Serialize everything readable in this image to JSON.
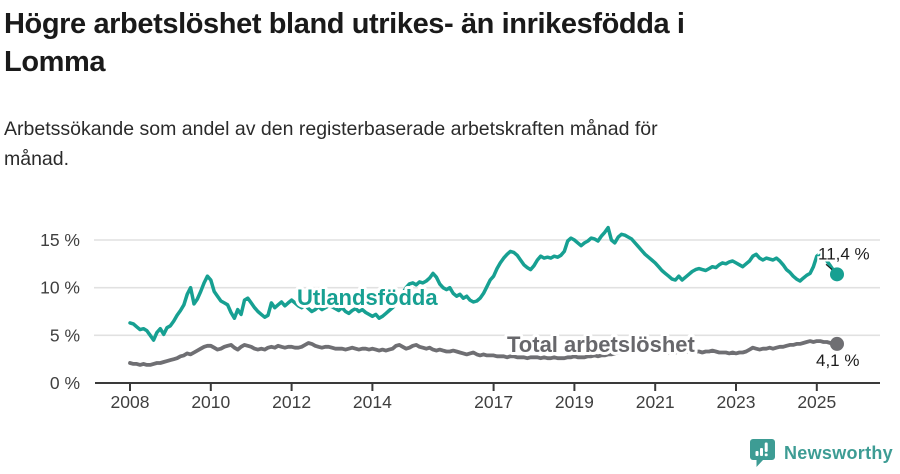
{
  "header": {
    "title": "Högre arbetslöshet bland utrikes- än inrikesfödda i\nLomma",
    "subtitle": "Arbetssökande som andel av den registerbaserade arbetskraften månad för\nmånad."
  },
  "chart_data": {
    "type": "line",
    "title": "Högre arbetslöshet bland utrikes- än inrikesfödda i Lomma",
    "subtitle": "Arbetssökande som andel av den registerbaserade arbetskraften månad för månad.",
    "unit": "%",
    "grid": "horizontal",
    "x": {
      "start_year": 2008,
      "points_per_year": 12,
      "tick_years": [
        2008,
        2010,
        2012,
        2014,
        2017,
        2019,
        2021,
        2023,
        2025
      ],
      "tick_labels": [
        "2008",
        "2010",
        "2012",
        "2014",
        "2017",
        "2019",
        "2021",
        "2023",
        "2025"
      ]
    },
    "y": {
      "tick_values": [
        0,
        5,
        10,
        15
      ],
      "tick_labels": [
        "0 %",
        "5 %",
        "10 %",
        "15 %"
      ],
      "range": [
        0,
        17
      ]
    },
    "series": [
      {
        "id": "utlandsfodda",
        "name": "Utlandsfödda",
        "color": "#17a092",
        "end_label": "11,4 %",
        "end_value": 11.4,
        "values": [
          6.3,
          6.2,
          5.9,
          5.6,
          5.7,
          5.5,
          5.0,
          4.5,
          5.3,
          5.7,
          5.1,
          5.8,
          6.0,
          6.5,
          7.1,
          7.6,
          8.2,
          9.3,
          10.0,
          8.3,
          8.8,
          9.6,
          10.5,
          11.2,
          10.8,
          9.6,
          9.1,
          8.6,
          8.4,
          8.2,
          7.4,
          6.8,
          7.7,
          7.2,
          8.7,
          8.9,
          8.4,
          7.9,
          7.5,
          7.2,
          6.9,
          7.1,
          8.4,
          7.9,
          8.2,
          8.5,
          8.1,
          8.4,
          8.7,
          8.4,
          8.1,
          7.9,
          8.2,
          7.8,
          7.5,
          7.7,
          8.0,
          7.7,
          7.9,
          8.1,
          8.0,
          7.8,
          7.6,
          7.9,
          7.5,
          7.3,
          7.6,
          7.8,
          7.5,
          7.7,
          7.4,
          7.2,
          7.0,
          7.2,
          6.8,
          7.0,
          7.3,
          7.6,
          7.9,
          8.3,
          8.8,
          9.4,
          10.0,
          10.4,
          10.5,
          10.3,
          10.6,
          10.5,
          10.7,
          11.0,
          11.5,
          11.1,
          10.4,
          10.0,
          9.8,
          10.0,
          9.4,
          9.1,
          9.3,
          8.9,
          9.1,
          8.7,
          8.5,
          8.6,
          8.9,
          9.4,
          10.1,
          10.8,
          11.2,
          12.0,
          12.6,
          13.1,
          13.5,
          13.8,
          13.7,
          13.4,
          12.9,
          12.4,
          12.1,
          11.9,
          12.3,
          12.9,
          13.3,
          13.1,
          13.2,
          13.1,
          13.3,
          13.2,
          13.4,
          13.8,
          14.9,
          15.2,
          15.0,
          14.7,
          14.4,
          14.7,
          14.9,
          15.2,
          15.1,
          14.9,
          15.4,
          15.8,
          16.3,
          15.0,
          14.7,
          15.3,
          15.6,
          15.5,
          15.3,
          15.1,
          14.7,
          14.3,
          13.9,
          13.5,
          13.2,
          12.9,
          12.6,
          12.2,
          11.8,
          11.5,
          11.2,
          10.9,
          10.8,
          11.2,
          10.8,
          11.1,
          11.4,
          11.7,
          11.9,
          12.0,
          11.9,
          11.8,
          12.0,
          12.2,
          12.1,
          12.4,
          12.6,
          12.5,
          12.7,
          12.8,
          12.6,
          12.4,
          12.2,
          12.5,
          12.8,
          13.3,
          13.5,
          13.1,
          12.9,
          13.1,
          13.0,
          12.9,
          13.1,
          12.8,
          12.4,
          11.9,
          11.6,
          11.2,
          10.9,
          10.7,
          11.0,
          11.3,
          11.5,
          12.2,
          13.3,
          13.6,
          13.4,
          12.8,
          12.3,
          11.8,
          11.4
        ]
      },
      {
        "id": "total-arbetsloshet",
        "name": "Total arbetslöshet",
        "color": "#6f6f73",
        "label_color": "#67676b",
        "end_label": "4,1 %",
        "end_value": 4.1,
        "values": [
          2.1,
          2.0,
          2.0,
          1.9,
          2.0,
          1.9,
          1.9,
          2.0,
          2.1,
          2.1,
          2.2,
          2.3,
          2.4,
          2.5,
          2.6,
          2.8,
          2.9,
          3.1,
          3.0,
          3.2,
          3.4,
          3.6,
          3.8,
          3.9,
          3.9,
          3.7,
          3.5,
          3.6,
          3.8,
          3.9,
          4.0,
          3.7,
          3.5,
          3.8,
          4.0,
          3.9,
          3.8,
          3.6,
          3.5,
          3.6,
          3.5,
          3.7,
          3.8,
          3.7,
          3.9,
          3.8,
          3.7,
          3.8,
          3.8,
          3.7,
          3.7,
          3.8,
          4.0,
          4.2,
          4.1,
          3.9,
          3.8,
          3.7,
          3.8,
          3.8,
          3.7,
          3.6,
          3.6,
          3.6,
          3.5,
          3.6,
          3.7,
          3.6,
          3.5,
          3.6,
          3.6,
          3.5,
          3.6,
          3.5,
          3.4,
          3.5,
          3.4,
          3.5,
          3.6,
          3.9,
          4.0,
          3.8,
          3.6,
          3.7,
          3.9,
          4.0,
          3.8,
          3.7,
          3.6,
          3.7,
          3.5,
          3.4,
          3.5,
          3.4,
          3.3,
          3.3,
          3.4,
          3.3,
          3.2,
          3.1,
          3.0,
          3.1,
          3.2,
          3.0,
          2.9,
          3.0,
          2.9,
          2.9,
          2.9,
          2.8,
          2.8,
          2.8,
          2.7,
          2.8,
          2.8,
          2.7,
          2.7,
          2.7,
          2.6,
          2.7,
          2.7,
          2.7,
          2.6,
          2.7,
          2.6,
          2.6,
          2.7,
          2.6,
          2.6,
          2.6,
          2.7,
          2.7,
          2.8,
          2.7,
          2.7,
          2.7,
          2.8,
          2.8,
          2.9,
          2.8,
          2.9,
          2.9,
          3.0,
          3.0,
          3.1,
          3.2,
          3.4,
          3.6,
          3.7,
          3.8,
          3.9,
          3.8,
          3.7,
          3.6,
          3.5,
          3.5,
          3.4,
          3.4,
          3.3,
          3.3,
          3.2,
          3.2,
          3.2,
          3.3,
          3.2,
          3.3,
          3.3,
          3.3,
          3.3,
          3.3,
          3.2,
          3.3,
          3.3,
          3.4,
          3.3,
          3.2,
          3.2,
          3.2,
          3.1,
          3.2,
          3.1,
          3.2,
          3.2,
          3.3,
          3.5,
          3.7,
          3.6,
          3.5,
          3.6,
          3.6,
          3.7,
          3.6,
          3.7,
          3.8,
          3.8,
          3.9,
          4.0,
          4.0,
          4.1,
          4.1,
          4.2,
          4.3,
          4.4,
          4.3,
          4.4,
          4.4,
          4.3,
          4.3,
          4.2,
          4.2,
          4.1
        ]
      }
    ]
  },
  "footer": {
    "brand": "Newsworthy",
    "brand_color": "#3d9c94"
  }
}
